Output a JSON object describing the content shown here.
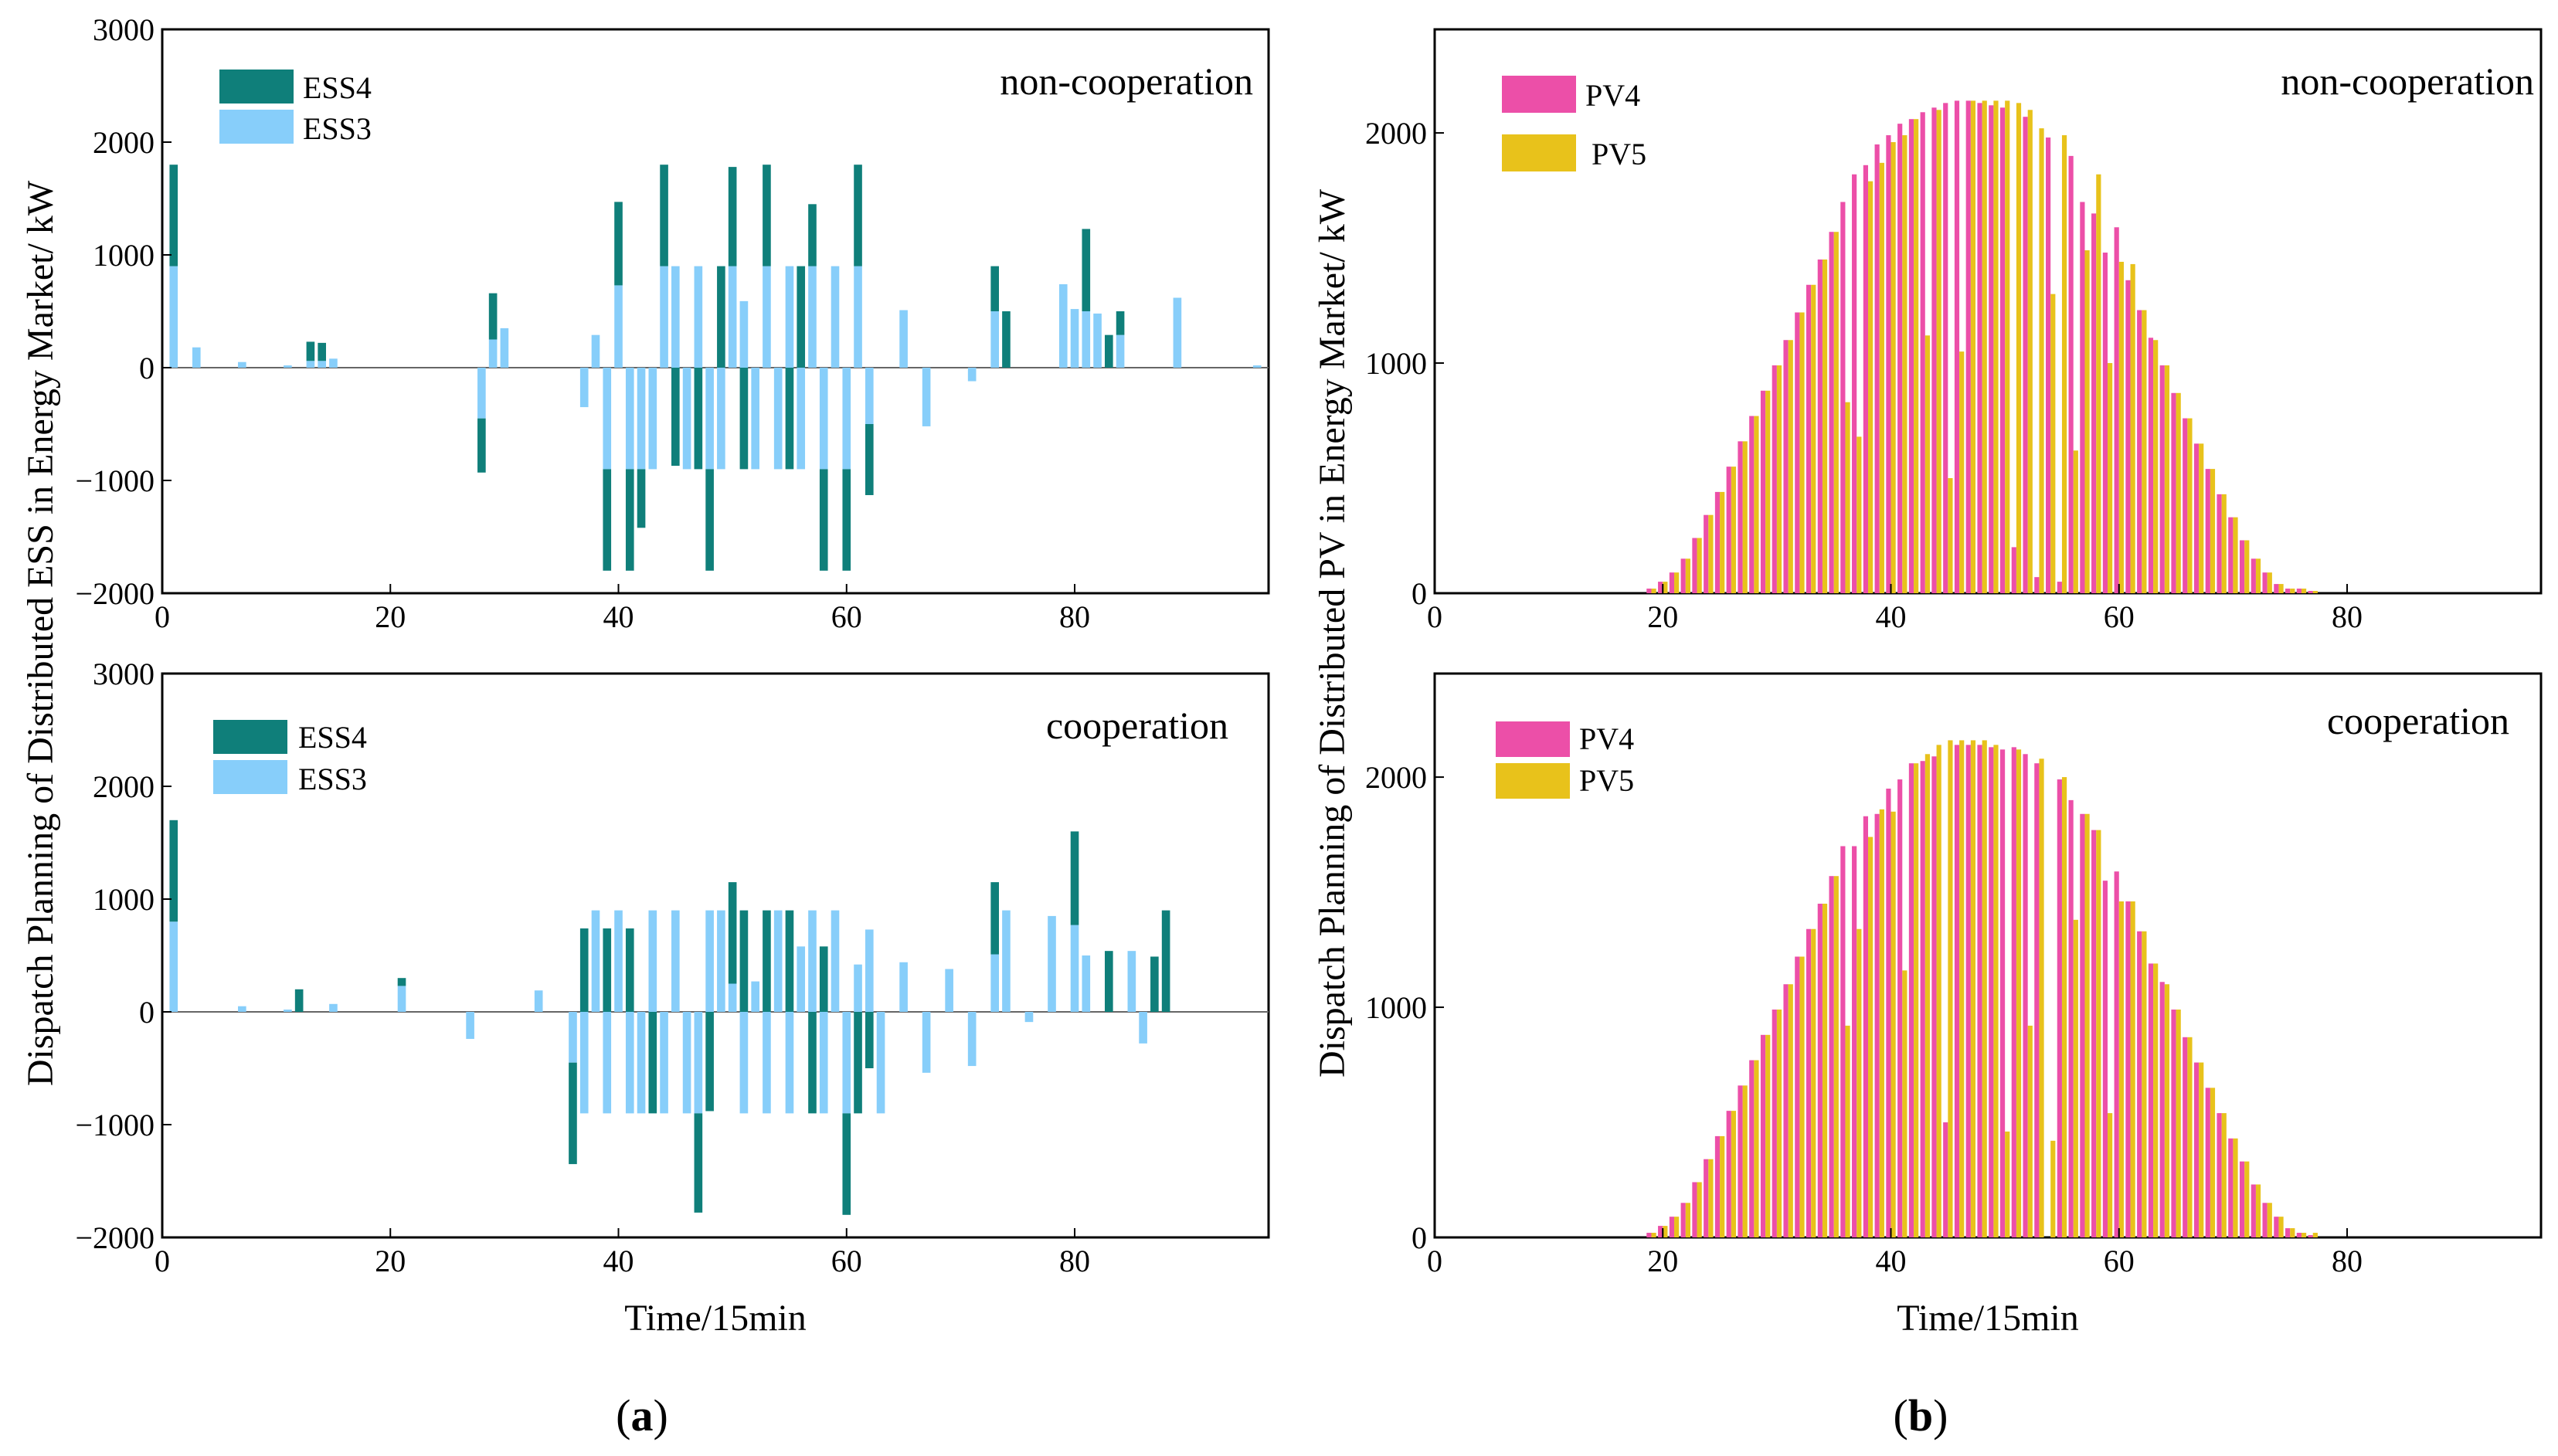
{
  "colors": {
    "ESS4": "#0f7f7a",
    "ESS3": "#87cefa",
    "PV4": "#ec4fa8",
    "PV5": "#e8c21b"
  },
  "captions": {
    "a_letter": "a",
    "b_letter": "b"
  },
  "panel_a": {
    "ylabel": "Dispatch Planning of Distributed ESS in Energy Market/ kW",
    "xlabel": "Time/15min",
    "xticks": [
      "0",
      "20",
      "40",
      "60",
      "80"
    ],
    "yticks": [
      "3000",
      "2000",
      "1000",
      "0",
      "−1000",
      "−2000"
    ]
  },
  "panel_b": {
    "ylabel": "Dispatch Planning of Distributed PV in Energy Market/ kW",
    "xlabel": "Time/15min",
    "xticks": [
      "0",
      "20",
      "40",
      "60",
      "80"
    ],
    "yticks": [
      "2000",
      "1000",
      "0"
    ]
  },
  "chart_data": [
    {
      "id": "ess_noncoop",
      "type": "bar",
      "stacked": true,
      "title": "non-cooperation",
      "xlabel": "Time/15min",
      "ylabel": "Dispatch Planning of Distributed ESS in Energy Market/ kW",
      "xlim": [
        0,
        97
      ],
      "ylim": [
        -2000,
        3000
      ],
      "legend": [
        "ESS4",
        "ESS3"
      ],
      "legend_position": "top-left",
      "grid": false,
      "series": [
        {
          "name": "ESS3",
          "x": [
            1,
            3,
            7,
            11,
            13,
            14,
            15,
            28,
            29,
            30,
            37,
            38,
            39,
            40,
            41,
            42,
            43,
            44,
            45,
            46,
            47,
            48,
            49,
            50,
            51,
            52,
            53,
            54,
            55,
            56,
            57,
            58,
            59,
            60,
            61,
            62,
            65,
            67,
            71,
            73,
            79,
            80,
            81,
            82,
            84,
            89,
            96
          ],
          "values": [
            900,
            180,
            50,
            20,
            60,
            60,
            80,
            -450,
            250,
            350,
            -350,
            290,
            -900,
            730,
            -900,
            -900,
            -900,
            900,
            900,
            -900,
            900,
            -900,
            -900,
            900,
            590,
            -900,
            900,
            -900,
            900,
            -900,
            900,
            -900,
            900,
            -900,
            900,
            -500,
            510,
            -520,
            -120,
            500,
            740,
            520,
            500,
            480,
            290,
            620,
            20
          ]
        },
        {
          "name": "ESS4",
          "x": [
            1,
            13,
            14,
            28,
            29,
            39,
            40,
            41,
            42,
            44,
            45,
            47,
            48,
            49,
            50,
            51,
            53,
            55,
            56,
            57,
            58,
            60,
            61,
            62,
            73,
            74,
            81,
            83,
            84
          ],
          "values": [
            900,
            170,
            160,
            -480,
            410,
            -900,
            740,
            -900,
            -520,
            900,
            -870,
            -900,
            -900,
            900,
            880,
            -900,
            900,
            -900,
            900,
            550,
            -900,
            -900,
            900,
            -630,
            400,
            500,
            730,
            290,
            210
          ]
        }
      ]
    },
    {
      "id": "ess_coop",
      "type": "bar",
      "stacked": true,
      "title": "cooperation",
      "xlabel": "Time/15min",
      "ylabel": "Dispatch Planning of Distributed ESS in Energy Market/ kW",
      "xlim": [
        0,
        97
      ],
      "ylim": [
        -2000,
        3000
      ],
      "legend": [
        "ESS4",
        "ESS3"
      ],
      "legend_position": "top-left",
      "grid": false,
      "series": [
        {
          "name": "ESS3",
          "x": [
            1,
            7,
            11,
            15,
            21,
            27,
            33,
            36,
            37,
            38,
            39,
            40,
            41,
            42,
            43,
            44,
            45,
            46,
            47,
            48,
            49,
            50,
            51,
            52,
            53,
            54,
            55,
            56,
            57,
            58,
            59,
            60,
            61,
            62,
            63,
            65,
            67,
            69,
            71,
            73,
            74,
            76,
            78,
            80,
            81,
            85,
            86
          ],
          "values": [
            800,
            50,
            20,
            70,
            230,
            -240,
            190,
            -450,
            -900,
            900,
            -900,
            900,
            -900,
            -900,
            900,
            -900,
            900,
            -900,
            -900,
            900,
            900,
            250,
            -900,
            270,
            -900,
            900,
            -900,
            580,
            900,
            -900,
            900,
            -900,
            420,
            730,
            -900,
            440,
            -540,
            380,
            -480,
            510,
            900,
            -90,
            850,
            770,
            500,
            540,
            -280
          ]
        },
        {
          "name": "ESS4",
          "x": [
            1,
            12,
            21,
            36,
            37,
            39,
            41,
            43,
            47,
            48,
            50,
            51,
            53,
            55,
            57,
            58,
            60,
            61,
            62,
            73,
            80,
            83,
            87,
            88
          ],
          "values": [
            900,
            200,
            70,
            -900,
            740,
            740,
            740,
            -900,
            -880,
            -880,
            900,
            900,
            900,
            900,
            -900,
            580,
            -900,
            -900,
            -500,
            640,
            830,
            540,
            490,
            900
          ]
        }
      ]
    },
    {
      "id": "pv_noncoop",
      "type": "bar",
      "title": "non-cooperation",
      "xlabel": "Time/15min",
      "ylabel": "Dispatch Planning of Distributed PV in Energy Market/ kW",
      "xlim": [
        0,
        97
      ],
      "ylim": [
        0,
        2450
      ],
      "legend": [
        "PV4",
        "PV5"
      ],
      "legend_position": "top-left",
      "grid": false,
      "x": [
        19,
        20,
        21,
        22,
        23,
        24,
        25,
        26,
        27,
        28,
        29,
        30,
        31,
        32,
        33,
        34,
        35,
        36,
        37,
        38,
        39,
        40,
        41,
        42,
        43,
        44,
        45,
        46,
        47,
        48,
        49,
        50,
        51,
        52,
        53,
        54,
        55,
        56,
        57,
        58,
        59,
        60,
        61,
        62,
        63,
        64,
        65,
        66,
        67,
        68,
        69,
        70,
        71,
        72,
        73,
        74,
        75,
        76,
        77
      ],
      "series": [
        {
          "name": "PV4",
          "values": [
            20,
            50,
            90,
            150,
            240,
            340,
            440,
            550,
            660,
            770,
            880,
            990,
            1100,
            1220,
            1340,
            1450,
            1570,
            1700,
            1820,
            1860,
            1950,
            1990,
            2040,
            2060,
            2090,
            2110,
            2130,
            2140,
            2140,
            2130,
            2120,
            2110,
            200,
            2070,
            70,
            1980,
            50,
            1900,
            1700,
            1650,
            1480,
            1590,
            1360,
            1230,
            1110,
            990,
            870,
            760,
            650,
            540,
            430,
            330,
            230,
            150,
            90,
            40,
            20,
            20,
            10
          ]
        },
        {
          "name": "PV5",
          "values": [
            20,
            50,
            90,
            150,
            240,
            340,
            440,
            550,
            660,
            770,
            880,
            990,
            1100,
            1220,
            1340,
            1450,
            1570,
            830,
            680,
            1790,
            1870,
            1960,
            1990,
            2060,
            1120,
            2100,
            500,
            1050,
            2140,
            2140,
            2140,
            2140,
            2130,
            2100,
            2020,
            1300,
            1990,
            620,
            1490,
            1820,
            1000,
            1440,
            1430,
            1230,
            1100,
            990,
            870,
            760,
            650,
            540,
            430,
            330,
            230,
            150,
            90,
            40,
            20,
            20,
            10
          ]
        }
      ]
    },
    {
      "id": "pv_coop",
      "type": "bar",
      "title": "cooperation",
      "xlabel": "Time/15min",
      "ylabel": "Dispatch Planning of Distributed PV in Energy Market/ kW",
      "xlim": [
        0,
        97
      ],
      "ylim": [
        0,
        2450
      ],
      "legend": [
        "PV4",
        "PV5"
      ],
      "legend_position": "top-left",
      "grid": false,
      "x": [
        19,
        20,
        21,
        22,
        23,
        24,
        25,
        26,
        27,
        28,
        29,
        30,
        31,
        32,
        33,
        34,
        35,
        36,
        37,
        38,
        39,
        40,
        41,
        42,
        43,
        44,
        45,
        46,
        47,
        48,
        49,
        50,
        51,
        52,
        53,
        54,
        55,
        56,
        57,
        58,
        59,
        60,
        61,
        62,
        63,
        64,
        65,
        66,
        67,
        68,
        69,
        70,
        71,
        72,
        73,
        74,
        75,
        76,
        77
      ],
      "series": [
        {
          "name": "PV4",
          "values": [
            20,
            50,
            90,
            150,
            240,
            340,
            440,
            550,
            660,
            770,
            880,
            990,
            1100,
            1220,
            1340,
            1450,
            1570,
            1700,
            1700,
            1830,
            1840,
            1950,
            1990,
            2060,
            2070,
            2090,
            500,
            2140,
            2140,
            2140,
            2130,
            2120,
            2130,
            2100,
            2060,
            0,
            1990,
            1900,
            1840,
            1770,
            1550,
            1590,
            1460,
            1330,
            1190,
            1110,
            990,
            870,
            760,
            650,
            540,
            430,
            330,
            230,
            150,
            90,
            40,
            20,
            10
          ]
        },
        {
          "name": "PV5",
          "values": [
            20,
            50,
            90,
            150,
            240,
            340,
            440,
            550,
            660,
            770,
            880,
            990,
            1100,
            1220,
            1340,
            1450,
            1570,
            920,
            1340,
            1740,
            1860,
            1850,
            1160,
            2060,
            2100,
            2140,
            2160,
            2160,
            2160,
            2160,
            2140,
            460,
            2120,
            920,
            2080,
            420,
            2000,
            1380,
            1840,
            1770,
            540,
            1460,
            1460,
            1330,
            1190,
            1100,
            990,
            870,
            760,
            650,
            540,
            430,
            330,
            230,
            150,
            90,
            40,
            20,
            20
          ]
        }
      ]
    }
  ]
}
